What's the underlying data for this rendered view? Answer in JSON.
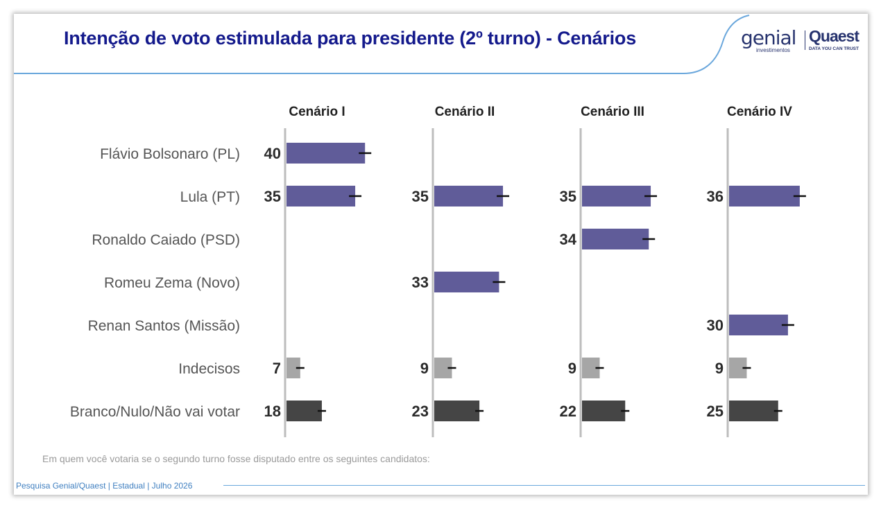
{
  "header": {
    "title": "Intenção de voto estimulada para presidente (2º turno) - Cenários",
    "logo_genial": "genial",
    "logo_genial_sub": "investimentos",
    "logo_quaest": "Quaest",
    "logo_quaest_sub": "DATA YOU CAN TRUST"
  },
  "chart_data": {
    "type": "bar",
    "orientation": "horizontal",
    "panels": [
      "Cenário I",
      "Cenário II",
      "Cenário III",
      "Cenário IV"
    ],
    "categories": [
      "Flávio Bolsonaro (PL)",
      "Lula (PT)",
      "Ronaldo Caiado (PSD)",
      "Romeu Zema (Novo)",
      "Renan Santos (Missão)",
      "Indecisos",
      "Branco/Nulo/Não vai votar"
    ],
    "category_kind": [
      "candidate",
      "candidate",
      "candidate",
      "candidate",
      "candidate",
      "undecided",
      "blank"
    ],
    "values": [
      [
        40,
        35,
        null,
        null,
        null,
        7,
        18
      ],
      [
        null,
        35,
        null,
        33,
        null,
        9,
        23
      ],
      [
        null,
        35,
        34,
        null,
        null,
        9,
        22
      ],
      [
        null,
        36,
        null,
        null,
        30,
        9,
        25
      ]
    ],
    "error_bars": true,
    "xlim": [
      0,
      45
    ],
    "colors": {
      "candidate": "#605c99",
      "undecided": "#a6a6a6",
      "blank": "#454545",
      "axis": "#bdbdbd",
      "value_text": "#2b2b2b",
      "label_text": "#555555"
    }
  },
  "note": "Em quem você votaria se o segundo turno fosse disputado entre os seguintes candidatos:",
  "footer": "Pesquisa Genial/Quaest | Estadual | Julho 2026"
}
